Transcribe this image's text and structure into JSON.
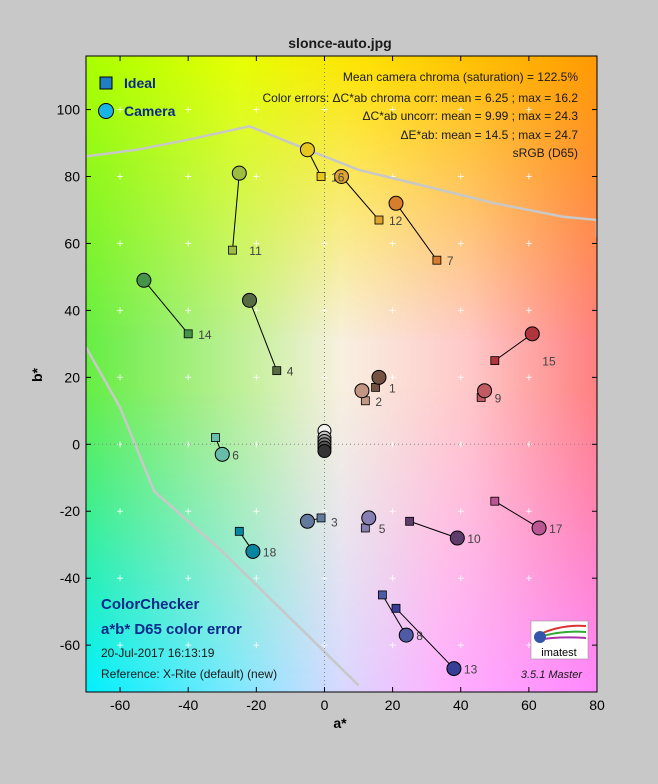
{
  "window": {
    "title": "slonce-auto.jpg"
  },
  "chart_data": {
    "type": "scatter",
    "title": "slonce-auto.jpg",
    "xlabel": "a*",
    "ylabel": "b*",
    "xlim": [
      -70,
      80
    ],
    "ylim": [
      -74,
      116
    ],
    "x_ticks": [
      -60,
      -40,
      -20,
      0,
      20,
      40,
      60,
      80
    ],
    "y_ticks": [
      -60,
      -40,
      -20,
      0,
      20,
      40,
      60,
      80,
      100
    ],
    "grid": "crosses",
    "legend_position": "top-left",
    "legend": [
      {
        "label": "Ideal",
        "marker": "square",
        "color": "#1f7fc0"
      },
      {
        "label": "Camera",
        "marker": "circle",
        "color": "#19b4e6"
      }
    ],
    "stats_lines": [
      "Mean camera chroma (saturation) = 122.5%",
      "Color errors:  ΔC*ab chroma corr:  mean = 6.25 ;  max = 16.2",
      "ΔC*ab uncorr:  mean = 9.99 ;  max = 24.3",
      "ΔE*ab:  mean = 14.5 ;  max = 24.7",
      "sRGB (D65)"
    ],
    "footer": {
      "title": "ColorChecker",
      "subtitle": "a*b* D65 color error",
      "date": "20-Jul-2017 16:13:19",
      "reference": "Reference: X-Rite (default) (new)",
      "logo_text": "imatest",
      "version": "3.5.1  Master"
    },
    "gamut_boundary": [
      [
        -70,
        86
      ],
      [
        -55,
        88
      ],
      [
        -40,
        91
      ],
      [
        -22,
        95
      ],
      [
        -5,
        88
      ],
      [
        10,
        82
      ],
      [
        30,
        77
      ],
      [
        50,
        72
      ],
      [
        70,
        68
      ],
      [
        80,
        67
      ],
      [
        80,
        62
      ]
    ],
    "gamut_boundary_lower": [
      [
        -70,
        29
      ],
      [
        -60,
        11
      ],
      [
        -50,
        -14
      ],
      [
        -40,
        -23
      ],
      [
        -30,
        -32
      ],
      [
        -20,
        -42
      ],
      [
        -10,
        -52
      ],
      [
        0,
        -62
      ],
      [
        10,
        -72
      ]
    ],
    "patches": [
      {
        "id": "1",
        "ideal": [
          15,
          17
        ],
        "camera": [
          16,
          20
        ],
        "color": "#735244"
      },
      {
        "id": "2",
        "ideal": [
          12,
          13
        ],
        "camera": [
          11,
          16
        ],
        "color": "#c29682"
      },
      {
        "id": "3",
        "ideal": [
          -1,
          -22
        ],
        "camera": [
          -5,
          -23
        ],
        "color": "#627a9d"
      },
      {
        "id": "4",
        "ideal": [
          -14,
          22
        ],
        "camera": [
          -22,
          43
        ],
        "color": "#576c43"
      },
      {
        "id": "5",
        "ideal": [
          12,
          -25
        ],
        "camera": [
          13,
          -22
        ],
        "color": "#8580b1"
      },
      {
        "id": "6",
        "ideal": [
          -32,
          2
        ],
        "camera": [
          -30,
          -3
        ],
        "color": "#67bdaa"
      },
      {
        "id": "7",
        "ideal": [
          33,
          55
        ],
        "camera": [
          21,
          72
        ],
        "color": "#d67e2c"
      },
      {
        "id": "8",
        "ideal": [
          17,
          -45
        ],
        "camera": [
          24,
          -57
        ],
        "color": "#505ba6"
      },
      {
        "id": "9",
        "ideal": [
          46,
          14
        ],
        "camera": [
          47,
          16
        ],
        "color": "#c15a63"
      },
      {
        "id": "10",
        "ideal": [
          25,
          -23
        ],
        "camera": [
          39,
          -28
        ],
        "color": "#5e3c6c"
      },
      {
        "id": "11",
        "ideal": [
          -27,
          58
        ],
        "camera": [
          -25,
          81
        ],
        "color": "#9dbc40"
      },
      {
        "id": "12",
        "ideal": [
          16,
          67
        ],
        "camera": [
          5,
          80
        ],
        "color": "#e0a32e"
      },
      {
        "id": "13",
        "ideal": [
          21,
          -49
        ],
        "camera": [
          38,
          -67
        ],
        "color": "#383d96"
      },
      {
        "id": "14",
        "ideal": [
          -40,
          33
        ],
        "camera": [
          -53,
          49
        ],
        "color": "#469449"
      },
      {
        "id": "15",
        "ideal": [
          50,
          25
        ],
        "camera": [
          61,
          33
        ],
        "color": "#af363c"
      },
      {
        "id": "16",
        "ideal": [
          -1,
          80
        ],
        "camera": [
          -5,
          88
        ],
        "color": "#e7c71f"
      },
      {
        "id": "17",
        "ideal": [
          50,
          -17
        ],
        "camera": [
          63,
          -25
        ],
        "color": "#bb5695"
      },
      {
        "id": "18",
        "ideal": [
          -25,
          -26
        ],
        "camera": [
          -21,
          -32
        ],
        "color": "#0885a1"
      }
    ],
    "neutrals": [
      {
        "camera": [
          0,
          4
        ],
        "color": "#f3f3f2"
      },
      {
        "camera": [
          0,
          2
        ],
        "color": "#c8c8c8"
      },
      {
        "camera": [
          0,
          1
        ],
        "color": "#a0a0a0"
      },
      {
        "camera": [
          0,
          0
        ],
        "color": "#7a7a79"
      },
      {
        "camera": [
          0,
          -1
        ],
        "color": "#555555"
      },
      {
        "camera": [
          0,
          -2
        ],
        "color": "#343434"
      }
    ]
  }
}
